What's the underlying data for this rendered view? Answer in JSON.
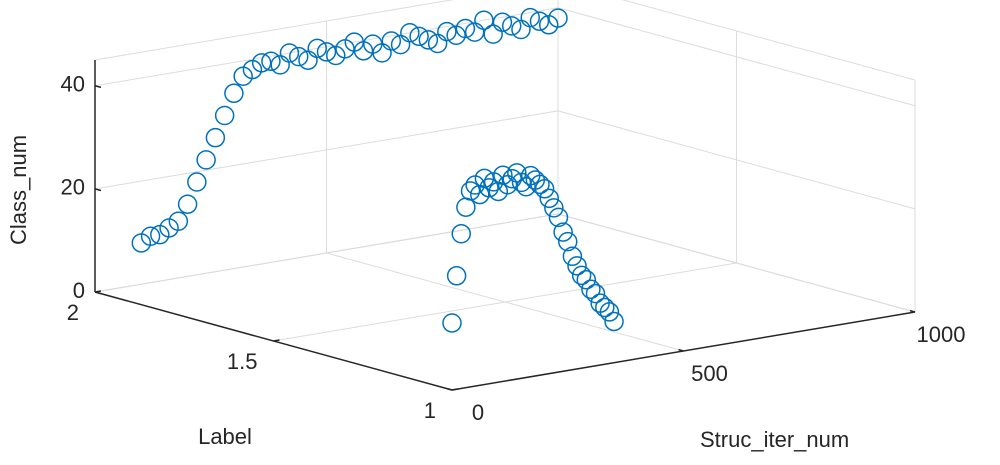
{
  "chart_data": {
    "type": "scatter3d",
    "xlabel": "Struc_iter_num",
    "ylabel": "Label",
    "zlabel": "Class_num",
    "xlim": [
      0,
      1000
    ],
    "ylim": [
      1,
      2
    ],
    "zlim": [
      0,
      45
    ],
    "xticks": [
      0,
      500,
      1000
    ],
    "yticks": [
      1,
      1.5,
      2
    ],
    "zticks": [
      0,
      20,
      40
    ],
    "grid": true,
    "series": [
      {
        "color": "#0072bd",
        "x": [
          100,
          120,
          140,
          160,
          180,
          200,
          220,
          240,
          260,
          280,
          300,
          320,
          340,
          360,
          380,
          400,
          420,
          440,
          460,
          480,
          500,
          520,
          540,
          560,
          580,
          600,
          620,
          640,
          660,
          680,
          700,
          720,
          740,
          760,
          780,
          800,
          820,
          840,
          860,
          880,
          900,
          920,
          940,
          960,
          980,
          1000
        ],
        "y": [
          2,
          2,
          2,
          2,
          2,
          2,
          2,
          2,
          2,
          2,
          2,
          2,
          2,
          2,
          2,
          2,
          2,
          2,
          2,
          2,
          2,
          2,
          2,
          2,
          2,
          2,
          2,
          2,
          2,
          2,
          2,
          2,
          2,
          2,
          2,
          2,
          2,
          2,
          2,
          2,
          2,
          2,
          2,
          2,
          2,
          2
        ],
        "z": [
          8,
          9,
          9,
          10,
          11,
          14,
          18,
          22,
          26,
          30,
          34,
          37,
          38,
          39,
          39,
          38,
          40,
          39,
          38,
          40,
          39,
          38,
          39,
          40,
          38,
          39,
          37,
          39,
          38,
          40,
          39,
          38,
          37,
          39,
          38,
          39,
          38,
          40,
          37,
          39,
          38,
          37,
          39,
          38,
          37,
          38
        ]
      },
      {
        "color": "#0072bd",
        "x": [
          0,
          10,
          20,
          30,
          40,
          50,
          60,
          70,
          80,
          90,
          100,
          110,
          120,
          130,
          140,
          150,
          160,
          170,
          180,
          190,
          200,
          210,
          220,
          230,
          240,
          250,
          260,
          270,
          280,
          290,
          300,
          310,
          320,
          330,
          340,
          350
        ],
        "y": [
          1,
          1,
          1,
          1,
          1,
          1,
          1,
          1,
          1,
          1,
          1,
          1,
          1,
          1,
          1,
          1,
          1,
          1,
          1,
          1,
          1,
          1,
          1,
          1,
          1,
          1,
          1,
          1,
          1,
          1,
          1,
          1,
          1,
          1,
          1,
          1
        ],
        "z": [
          13,
          22,
          30,
          35,
          38,
          39,
          37,
          40,
          38,
          39,
          37,
          40,
          38,
          39,
          40,
          38,
          37,
          39,
          38,
          37,
          36,
          34,
          32,
          30,
          27,
          25,
          22,
          20,
          18,
          17,
          15,
          14,
          12,
          11,
          10,
          8
        ]
      }
    ]
  }
}
